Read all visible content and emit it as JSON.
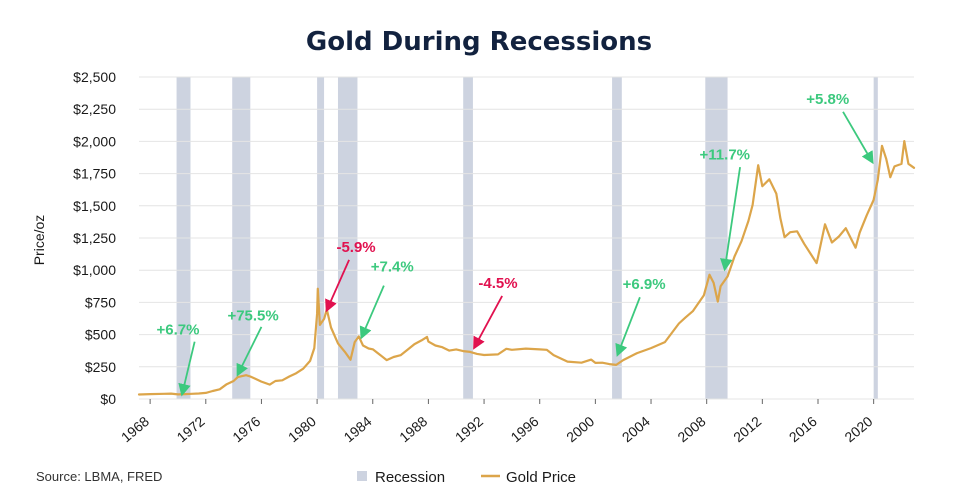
{
  "chart_data": {
    "type": "line",
    "title": "Gold During Recessions",
    "ylabel": "Price/oz",
    "xlabel": "",
    "xlim": [
      1967.2,
      2022.9
    ],
    "ylim": [
      0,
      2500
    ],
    "y_ticks": [
      0,
      250,
      500,
      750,
      1000,
      1250,
      1500,
      1750,
      2000,
      2250,
      2500
    ],
    "y_tick_labels": [
      "$0",
      "$250",
      "$500",
      "$750",
      "$1,000",
      "$1,250",
      "$1,500",
      "$1,750",
      "$2,000",
      "$2,250",
      "$2,500"
    ],
    "x_ticks": [
      1968,
      1972,
      1976,
      1980,
      1984,
      1988,
      1992,
      1996,
      2000,
      2004,
      2008,
      2012,
      2016,
      2020
    ],
    "x_tick_labels": [
      "1968",
      "1972",
      "1976",
      "1980",
      "1984",
      "1988",
      "1992",
      "1996",
      "2000",
      "2004",
      "2008",
      "2012",
      "2016",
      "2020"
    ],
    "grid": "horizontal",
    "legend": {
      "position": "bottom-center",
      "entries": [
        {
          "label": "Recession",
          "color": "#cdd3e0",
          "kind": "band"
        },
        {
          "label": "Gold Price",
          "color": "#dca54a",
          "kind": "line"
        }
      ]
    },
    "source": "Source: LBMA, FRED",
    "recessions": [
      {
        "start": 1969.9,
        "end": 1970.9
      },
      {
        "start": 1973.9,
        "end": 1975.2
      },
      {
        "start": 1980.0,
        "end": 1980.5
      },
      {
        "start": 1981.5,
        "end": 1982.9
      },
      {
        "start": 1990.5,
        "end": 1991.2
      },
      {
        "start": 2001.2,
        "end": 2001.9
      },
      {
        "start": 2007.9,
        "end": 2009.5
      },
      {
        "start": 2020.0,
        "end": 2020.3
      }
    ],
    "series": [
      {
        "name": "Gold Price",
        "color": "#dca54a",
        "points": [
          [
            1967.2,
            35
          ],
          [
            1968,
            38
          ],
          [
            1969,
            40
          ],
          [
            1969.5,
            42
          ],
          [
            1970,
            36
          ],
          [
            1970.5,
            38
          ],
          [
            1971,
            40
          ],
          [
            1971.5,
            43
          ],
          [
            1972,
            47
          ],
          [
            1972.5,
            62
          ],
          [
            1973,
            75
          ],
          [
            1973.5,
            115
          ],
          [
            1974,
            140
          ],
          [
            1974.3,
            170
          ],
          [
            1974.9,
            185
          ],
          [
            1975.2,
            175
          ],
          [
            1975.5,
            160
          ],
          [
            1976,
            135
          ],
          [
            1976.6,
            112
          ],
          [
            1977,
            140
          ],
          [
            1977.5,
            145
          ],
          [
            1978,
            175
          ],
          [
            1978.5,
            200
          ],
          [
            1979,
            235
          ],
          [
            1979.5,
            290
          ],
          [
            1979.8,
            400
          ],
          [
            1980,
            660
          ],
          [
            1980.05,
            850
          ],
          [
            1980.2,
            580
          ],
          [
            1980.5,
            620
          ],
          [
            1980.7,
            690
          ],
          [
            1981,
            560
          ],
          [
            1981.5,
            430
          ],
          [
            1982,
            360
          ],
          [
            1982.4,
            310
          ],
          [
            1982.7,
            440
          ],
          [
            1983,
            480
          ],
          [
            1983.3,
            420
          ],
          [
            1983.7,
            390
          ],
          [
            1984,
            380
          ],
          [
            1984.5,
            350
          ],
          [
            1985,
            300
          ],
          [
            1985.5,
            320
          ],
          [
            1986,
            345
          ],
          [
            1986.5,
            380
          ],
          [
            1987,
            420
          ],
          [
            1987.5,
            460
          ],
          [
            1987.9,
            480
          ],
          [
            1988,
            440
          ],
          [
            1988.5,
            420
          ],
          [
            1989,
            400
          ],
          [
            1989.5,
            370
          ],
          [
            1990,
            390
          ],
          [
            1990.5,
            370
          ],
          [
            1991,
            360
          ],
          [
            1991.5,
            355
          ],
          [
            1992,
            340
          ],
          [
            1993,
            340
          ],
          [
            1993.6,
            395
          ],
          [
            1994,
            380
          ],
          [
            1995,
            385
          ],
          [
            1996,
            390
          ],
          [
            1996.5,
            380
          ],
          [
            1997,
            335
          ],
          [
            1998,
            295
          ],
          [
            1999,
            280
          ],
          [
            1999.7,
            300
          ],
          [
            2000,
            285
          ],
          [
            2000.5,
            280
          ],
          [
            2001,
            265
          ],
          [
            2001.5,
            270
          ],
          [
            2002,
            300
          ],
          [
            2003,
            350
          ],
          [
            2004,
            400
          ],
          [
            2005,
            440
          ],
          [
            2006,
            580
          ],
          [
            2006.5,
            640
          ],
          [
            2007,
            680
          ],
          [
            2007.8,
            800
          ],
          [
            2008.2,
            970
          ],
          [
            2008.5,
            900
          ],
          [
            2008.8,
            750
          ],
          [
            2009,
            880
          ],
          [
            2009.5,
            950
          ],
          [
            2010,
            1100
          ],
          [
            2010.5,
            1230
          ],
          [
            2011,
            1380
          ],
          [
            2011.3,
            1500
          ],
          [
            2011.7,
            1820
          ],
          [
            2012,
            1650
          ],
          [
            2012.5,
            1700
          ],
          [
            2013,
            1600
          ],
          [
            2013.3,
            1400
          ],
          [
            2013.6,
            1250
          ],
          [
            2014,
            1300
          ],
          [
            2014.5,
            1300
          ],
          [
            2015,
            1200
          ],
          [
            2015.9,
            1060
          ],
          [
            2016,
            1100
          ],
          [
            2016.5,
            1350
          ],
          [
            2017,
            1220
          ],
          [
            2017.5,
            1260
          ],
          [
            2018,
            1320
          ],
          [
            2018.7,
            1180
          ],
          [
            2019,
            1290
          ],
          [
            2019.5,
            1420
          ],
          [
            2020,
            1550
          ],
          [
            2020.3,
            1700
          ],
          [
            2020.6,
            1960
          ],
          [
            2020.9,
            1870
          ],
          [
            2021.2,
            1720
          ],
          [
            2021.5,
            1800
          ],
          [
            2022,
            1830
          ],
          [
            2022.2,
            2000
          ],
          [
            2022.5,
            1820
          ],
          [
            2022.9,
            1800
          ]
        ]
      }
    ],
    "annotations": [
      {
        "label": "+6.7%",
        "color": "#3cc97e",
        "text_at": [
          1970.0,
          500
        ],
        "arrow_from": [
          1971.2,
          445
        ],
        "arrow_to": [
          1970.3,
          38
        ]
      },
      {
        "label": "+75.5%",
        "color": "#3cc97e",
        "text_at": [
          1975.4,
          610
        ],
        "arrow_from": [
          1976.0,
          560
        ],
        "arrow_to": [
          1974.3,
          190
        ]
      },
      {
        "label": "-5.9%",
        "color": "#e1114f",
        "text_at": [
          1982.8,
          1140
        ],
        "arrow_from": [
          1982.3,
          1080
        ],
        "arrow_to": [
          1980.7,
          690
        ]
      },
      {
        "label": "+7.4%",
        "color": "#3cc97e",
        "text_at": [
          1985.4,
          990
        ],
        "arrow_from": [
          1984.8,
          880
        ],
        "arrow_to": [
          1983.2,
          480
        ]
      },
      {
        "label": "-4.5%",
        "color": "#e1114f",
        "text_at": [
          1993.0,
          860
        ],
        "arrow_from": [
          1993.3,
          800
        ],
        "arrow_to": [
          1991.3,
          400
        ]
      },
      {
        "label": "+6.9%",
        "color": "#3cc97e",
        "text_at": [
          2003.5,
          855
        ],
        "arrow_from": [
          2003.2,
          790
        ],
        "arrow_to": [
          2001.6,
          345
        ]
      },
      {
        "label": "+11.7%",
        "color": "#3cc97e",
        "text_at": [
          2009.3,
          1860
        ],
        "arrow_from": [
          2010.4,
          1800
        ],
        "arrow_to": [
          2009.3,
          1010
        ]
      },
      {
        "label": "+5.8%",
        "color": "#3cc97e",
        "text_at": [
          2016.7,
          2290
        ],
        "arrow_from": [
          2017.8,
          2230
        ],
        "arrow_to": [
          2019.9,
          1840
        ]
      }
    ]
  }
}
